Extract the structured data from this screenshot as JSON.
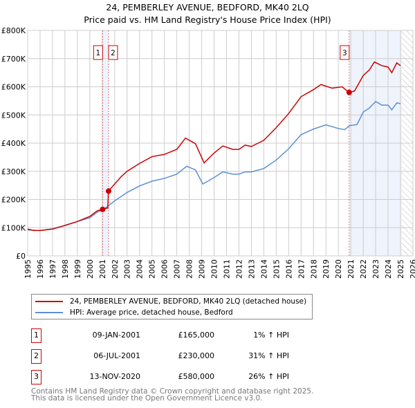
{
  "chart_data": {
    "type": "line",
    "title": "24, PEMBERLEY AVENUE, BEDFORD, MK40 2LQ",
    "subtitle": "Price paid vs. HM Land Registry's House Price Index (HPI)",
    "xlim": [
      1995,
      2026
    ],
    "ylim": [
      0,
      800000
    ],
    "x_ticks": [
      "1995",
      "1996",
      "1997",
      "1998",
      "1999",
      "2000",
      "2001",
      "2002",
      "2003",
      "2004",
      "2005",
      "2006",
      "2007",
      "2008",
      "2009",
      "2010",
      "2011",
      "2012",
      "2013",
      "2014",
      "2015",
      "2016",
      "2017",
      "2018",
      "2019",
      "2020",
      "2021",
      "2022",
      "2023",
      "2024",
      "2025",
      "2026"
    ],
    "y_ticks": [
      {
        "v": 0,
        "l": "£0"
      },
      {
        "v": 100000,
        "l": "£100K"
      },
      {
        "v": 200000,
        "l": "£200K"
      },
      {
        "v": 300000,
        "l": "£300K"
      },
      {
        "v": 400000,
        "l": "£400K"
      },
      {
        "v": 500000,
        "l": "£500K"
      },
      {
        "v": 600000,
        "l": "£600K"
      },
      {
        "v": 700000,
        "l": "£700K"
      },
      {
        "v": 800000,
        "l": "£800K"
      }
    ],
    "grid": true,
    "series": [
      {
        "name": "24, PEMBERLEY AVENUE, BEDFORD, MK40 2LQ (detached house)",
        "color": "#cc0000",
        "x": [
          1995,
          1995.5,
          1996,
          1997,
          1998,
          1999,
          2000,
          2000.6,
          2001.03,
          2001.45,
          2001.5,
          2002,
          2002.5,
          2003,
          2004,
          2005,
          2006,
          2007,
          2007.7,
          2008.5,
          2009.2,
          2010,
          2010.7,
          2011.5,
          2012,
          2012.5,
          2013,
          2014,
          2015,
          2016,
          2017,
          2018,
          2018.6,
          2019.5,
          2020.3,
          2020.87,
          2021.3,
          2022,
          2022.5,
          2022.9,
          2023.5,
          2024,
          2024.3,
          2024.7,
          2025
        ],
        "y": [
          95000,
          90000,
          90000,
          95000,
          108000,
          122000,
          140000,
          160000,
          165000,
          170000,
          230000,
          255000,
          280000,
          300000,
          328000,
          352000,
          360000,
          378000,
          418000,
          398000,
          330000,
          365000,
          390000,
          378000,
          378000,
          393000,
          388000,
          410000,
          455000,
          505000,
          565000,
          590000,
          608000,
          595000,
          600000,
          580000,
          585000,
          640000,
          660000,
          688000,
          675000,
          670000,
          650000,
          685000,
          675000
        ]
      },
      {
        "name": "HPI: Average price, detached house, Bedford",
        "color": "#5b8fd4",
        "x": [
          1995,
          1996,
          1997,
          1998,
          1999,
          2000,
          2000.6,
          2001.03,
          2001.5,
          2002,
          2003,
          2004,
          2005,
          2006,
          2007,
          2007.8,
          2008.5,
          2009.1,
          2010,
          2010.7,
          2011.5,
          2012,
          2012.5,
          2013,
          2014,
          2015,
          2016,
          2017,
          2017.5,
          2018,
          2019,
          2020,
          2020.5,
          2020.9,
          2021.5,
          2022,
          2022.5,
          2023,
          2023.5,
          2024,
          2024.3,
          2024.7,
          2025
        ],
        "y": [
          92000,
          90000,
          96000,
          108000,
          122000,
          135000,
          155000,
          163000,
          178000,
          195000,
          225000,
          248000,
          265000,
          275000,
          290000,
          318000,
          305000,
          255000,
          278000,
          298000,
          290000,
          290000,
          298000,
          298000,
          310000,
          340000,
          380000,
          430000,
          440000,
          450000,
          465000,
          452000,
          448000,
          462000,
          466000,
          510000,
          525000,
          548000,
          535000,
          535000,
          518000,
          543000,
          540000
        ]
      }
    ],
    "sales": [
      {
        "n": "1",
        "x": 2001.03,
        "y": 165000
      },
      {
        "n": "2",
        "x": 2001.51,
        "y": 230000
      },
      {
        "n": "3",
        "x": 2020.87,
        "y": 580000
      }
    ],
    "shaded_ranges": [
      [
        2001.03,
        2001.51
      ],
      [
        2020.87,
        2025.1
      ]
    ],
    "hatched_from": 2025.1,
    "legend": "below"
  },
  "transactions": [
    {
      "n": "1",
      "date": "09-JAN-2001",
      "price": "£165,000",
      "hpi": "1% ↑ HPI"
    },
    {
      "n": "2",
      "date": "06-JUL-2001",
      "price": "£230,000",
      "hpi": "31% ↑ HPI"
    },
    {
      "n": "3",
      "date": "13-NOV-2020",
      "price": "£580,000",
      "hpi": "26% ↑ HPI"
    }
  ],
  "footer": {
    "line1": "Contains HM Land Registry data © Crown copyright and database right 2025.",
    "line2": "This data is licensed under the Open Government Licence v3.0."
  }
}
